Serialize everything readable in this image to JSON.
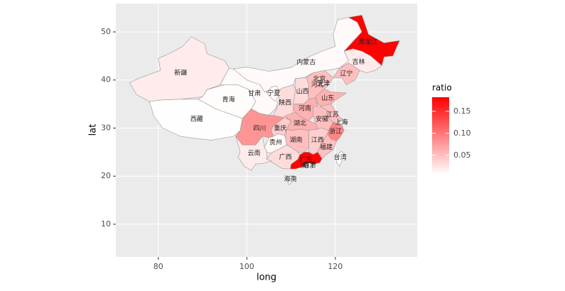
{
  "chart_data": {
    "type": "choropleth",
    "xlabel": "long",
    "ylabel": "lat",
    "xlim": [
      70.4,
      138.5
    ],
    "ylim": [
      3.2,
      55.9
    ],
    "xticks": [
      80,
      100,
      120
    ],
    "yticks": [
      10,
      20,
      30,
      40,
      50
    ],
    "regions": [
      "新疆",
      "西藏",
      "青海",
      "甘肃",
      "内蒙古",
      "宁夏",
      "陕西",
      "山西",
      "河北",
      "北京",
      "天津",
      "山东",
      "河南",
      "江苏",
      "安徽",
      "上海",
      "浙江",
      "湖北",
      "重庆",
      "四川",
      "湖南",
      "江西",
      "福建",
      "台湾",
      "广东",
      "广西",
      "贵州",
      "云南",
      "海南",
      "香港",
      "澳门",
      "辽宁",
      "吉林",
      "黑龙江"
    ],
    "values": [
      0.02,
      0.007,
      0.008,
      0.01,
      0.01,
      0.01,
      0.03,
      0.03,
      0.05,
      0.04,
      0.02,
      0.06,
      0.06,
      0.05,
      0.05,
      0.02,
      0.09,
      0.06,
      0.04,
      0.08,
      0.05,
      0.04,
      0.05,
      0.007,
      0.18,
      0.03,
      0.01,
      0.02,
      0.01,
      0.01,
      0.007,
      0.05,
      0.02,
      0.18
    ],
    "legend_title": "ratio",
    "colorscale": [
      "#ffffff",
      "#ff0000"
    ],
    "clim": [
      0.006,
      0.182
    ],
    "cticks": [
      0.05,
      {
        "value": 0.1,
        "label": "0.10"
      },
      0.15
    ]
  }
}
